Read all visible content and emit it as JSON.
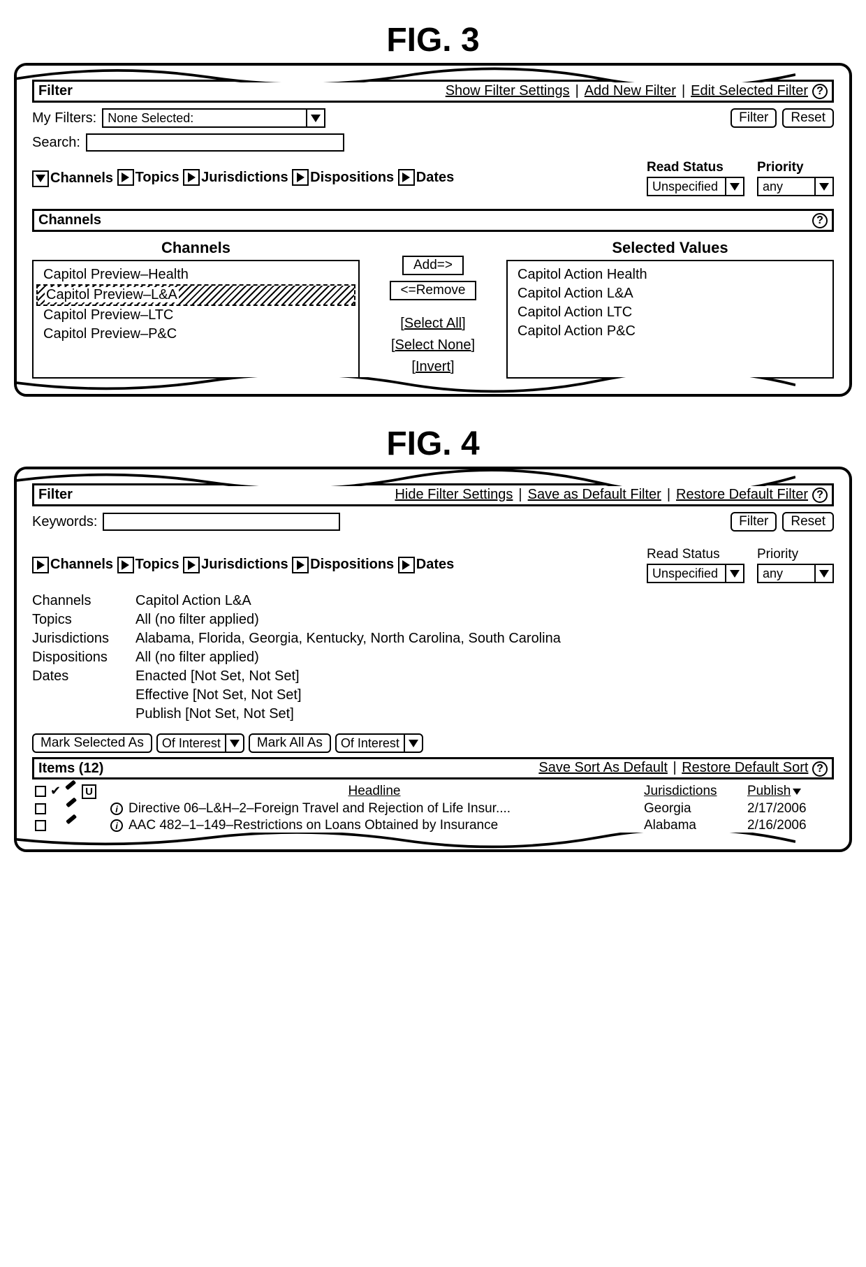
{
  "fig3": {
    "title": "FIG. 3",
    "filter_bar": {
      "label": "Filter",
      "links": [
        "Show Filter Settings",
        "Add New Filter",
        "Edit Selected Filter"
      ]
    },
    "my_filters": {
      "label": "My Filters:",
      "value": "None Selected:"
    },
    "search_label": "Search:",
    "buttons": {
      "filter": "Filter",
      "reset": "Reset"
    },
    "tabs": [
      "Channels",
      "Topics",
      "Jurisdictions",
      "Dispositions",
      "Dates"
    ],
    "tab_open_index": 0,
    "read_status": {
      "label": "Read Status",
      "value": "Unspecified"
    },
    "priority": {
      "label": "Priority",
      "value": "any"
    },
    "channels_bar": "Channels",
    "channels_title": "Channels",
    "selected_title": "Selected Values",
    "available": [
      "Capitol Preview–Health",
      "Capitol Preview–L&A",
      "Capitol Preview–LTC",
      "Capitol Preview–P&C"
    ],
    "available_selected_index": 1,
    "selected": [
      "Capitol Action Health",
      "Capitol Action L&A",
      "Capitol Action LTC",
      "Capitol Action P&C"
    ],
    "mid": {
      "add": "Add=>",
      "remove": "<=Remove",
      "select_all": "Select All",
      "select_none": "Select None",
      "invert": "Invert"
    }
  },
  "fig4": {
    "title": "FIG. 4",
    "filter_bar": {
      "label": "Filter",
      "links": [
        "Hide Filter Settings",
        "Save as Default Filter",
        "Restore Default Filter"
      ]
    },
    "keywords_label": "Keywords:",
    "buttons": {
      "filter": "Filter",
      "reset": "Reset"
    },
    "tabs": [
      "Channels",
      "Topics",
      "Jurisdictions",
      "Dispositions",
      "Dates"
    ],
    "read_status": {
      "label": "Read Status",
      "value": "Unspecified"
    },
    "priority": {
      "label": "Priority",
      "value": "any"
    },
    "summary": {
      "Channels": "Capitol Action L&A",
      "Topics": "All (no filter applied)",
      "Jurisdictions": "Alabama, Florida, Georgia, Kentucky, North Carolina, South Carolina",
      "Dispositions": "All (no filter applied)",
      "Dates": [
        "Enacted [Not Set, Not Set]",
        "Effective [Not Set, Not Set]",
        "Publish [Not Set, Not Set]"
      ]
    },
    "mark": {
      "mark_selected": "Mark Selected As",
      "mark_all": "Mark All As",
      "of_interest": "Of Interest"
    },
    "items_bar": {
      "label": "Items (12)",
      "links": [
        "Save Sort As Default",
        "Restore Default Sort"
      ]
    },
    "columns": {
      "headline": "Headline",
      "jurisdictions": "Jurisdictions",
      "publish": "Publish"
    },
    "rows": [
      {
        "headline": "Directive 06–L&H–2–Foreign Travel and Rejection of Life Insur....",
        "jurisdiction": "Georgia",
        "publish": "2/17/2006"
      },
      {
        "headline": "AAC 482–1–149–Restrictions on Loans Obtained by Insurance",
        "jurisdiction": "Alabama",
        "publish": "2/16/2006"
      }
    ]
  }
}
